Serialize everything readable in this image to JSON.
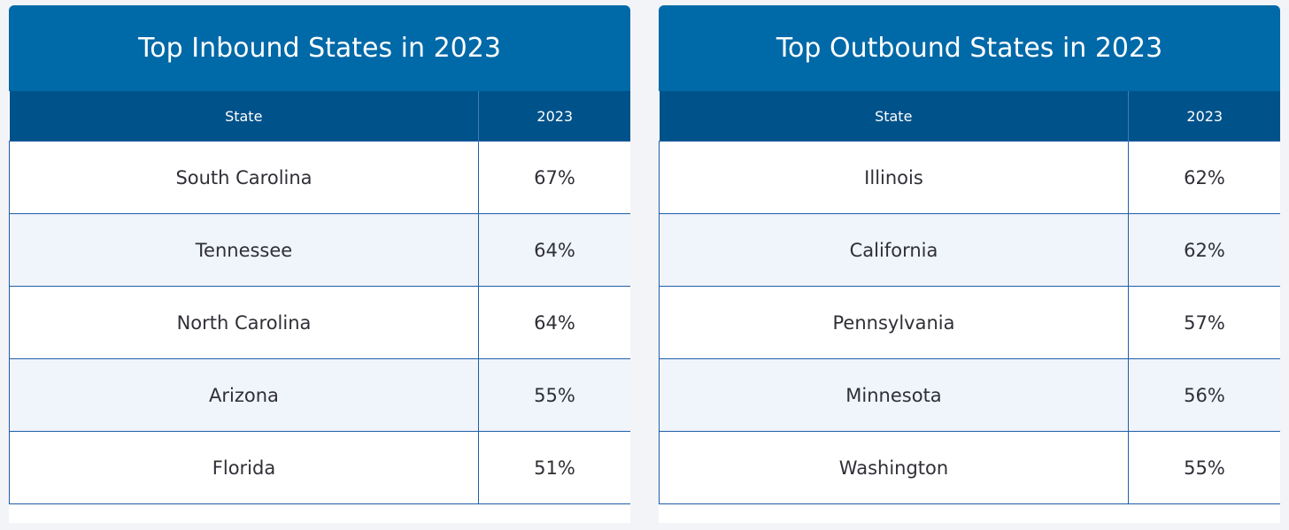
{
  "inbound": {
    "title": "Top Inbound States in 2023",
    "col_state": "State",
    "col_year": "2023",
    "rows": [
      {
        "state": "South Carolina",
        "value": "67%"
      },
      {
        "state": "Tennessee",
        "value": "64%"
      },
      {
        "state": "North Carolina",
        "value": "64%"
      },
      {
        "state": "Arizona",
        "value": "55%"
      },
      {
        "state": "Florida",
        "value": "51%"
      }
    ]
  },
  "outbound": {
    "title": "Top Outbound States in 2023",
    "col_state": "State",
    "col_year": "2023",
    "rows": [
      {
        "state": "Illinois",
        "value": "62%"
      },
      {
        "state": "California",
        "value": "62%"
      },
      {
        "state": "Pennsylvania",
        "value": "57%"
      },
      {
        "state": "Minnesota",
        "value": "56%"
      },
      {
        "state": "Washington",
        "value": "55%"
      }
    ]
  },
  "colors": {
    "title_bg": "#0069a8",
    "header_bg": "#00528a",
    "alt_row_bg": "#f0f4fb",
    "border": "#1f5fa8"
  }
}
